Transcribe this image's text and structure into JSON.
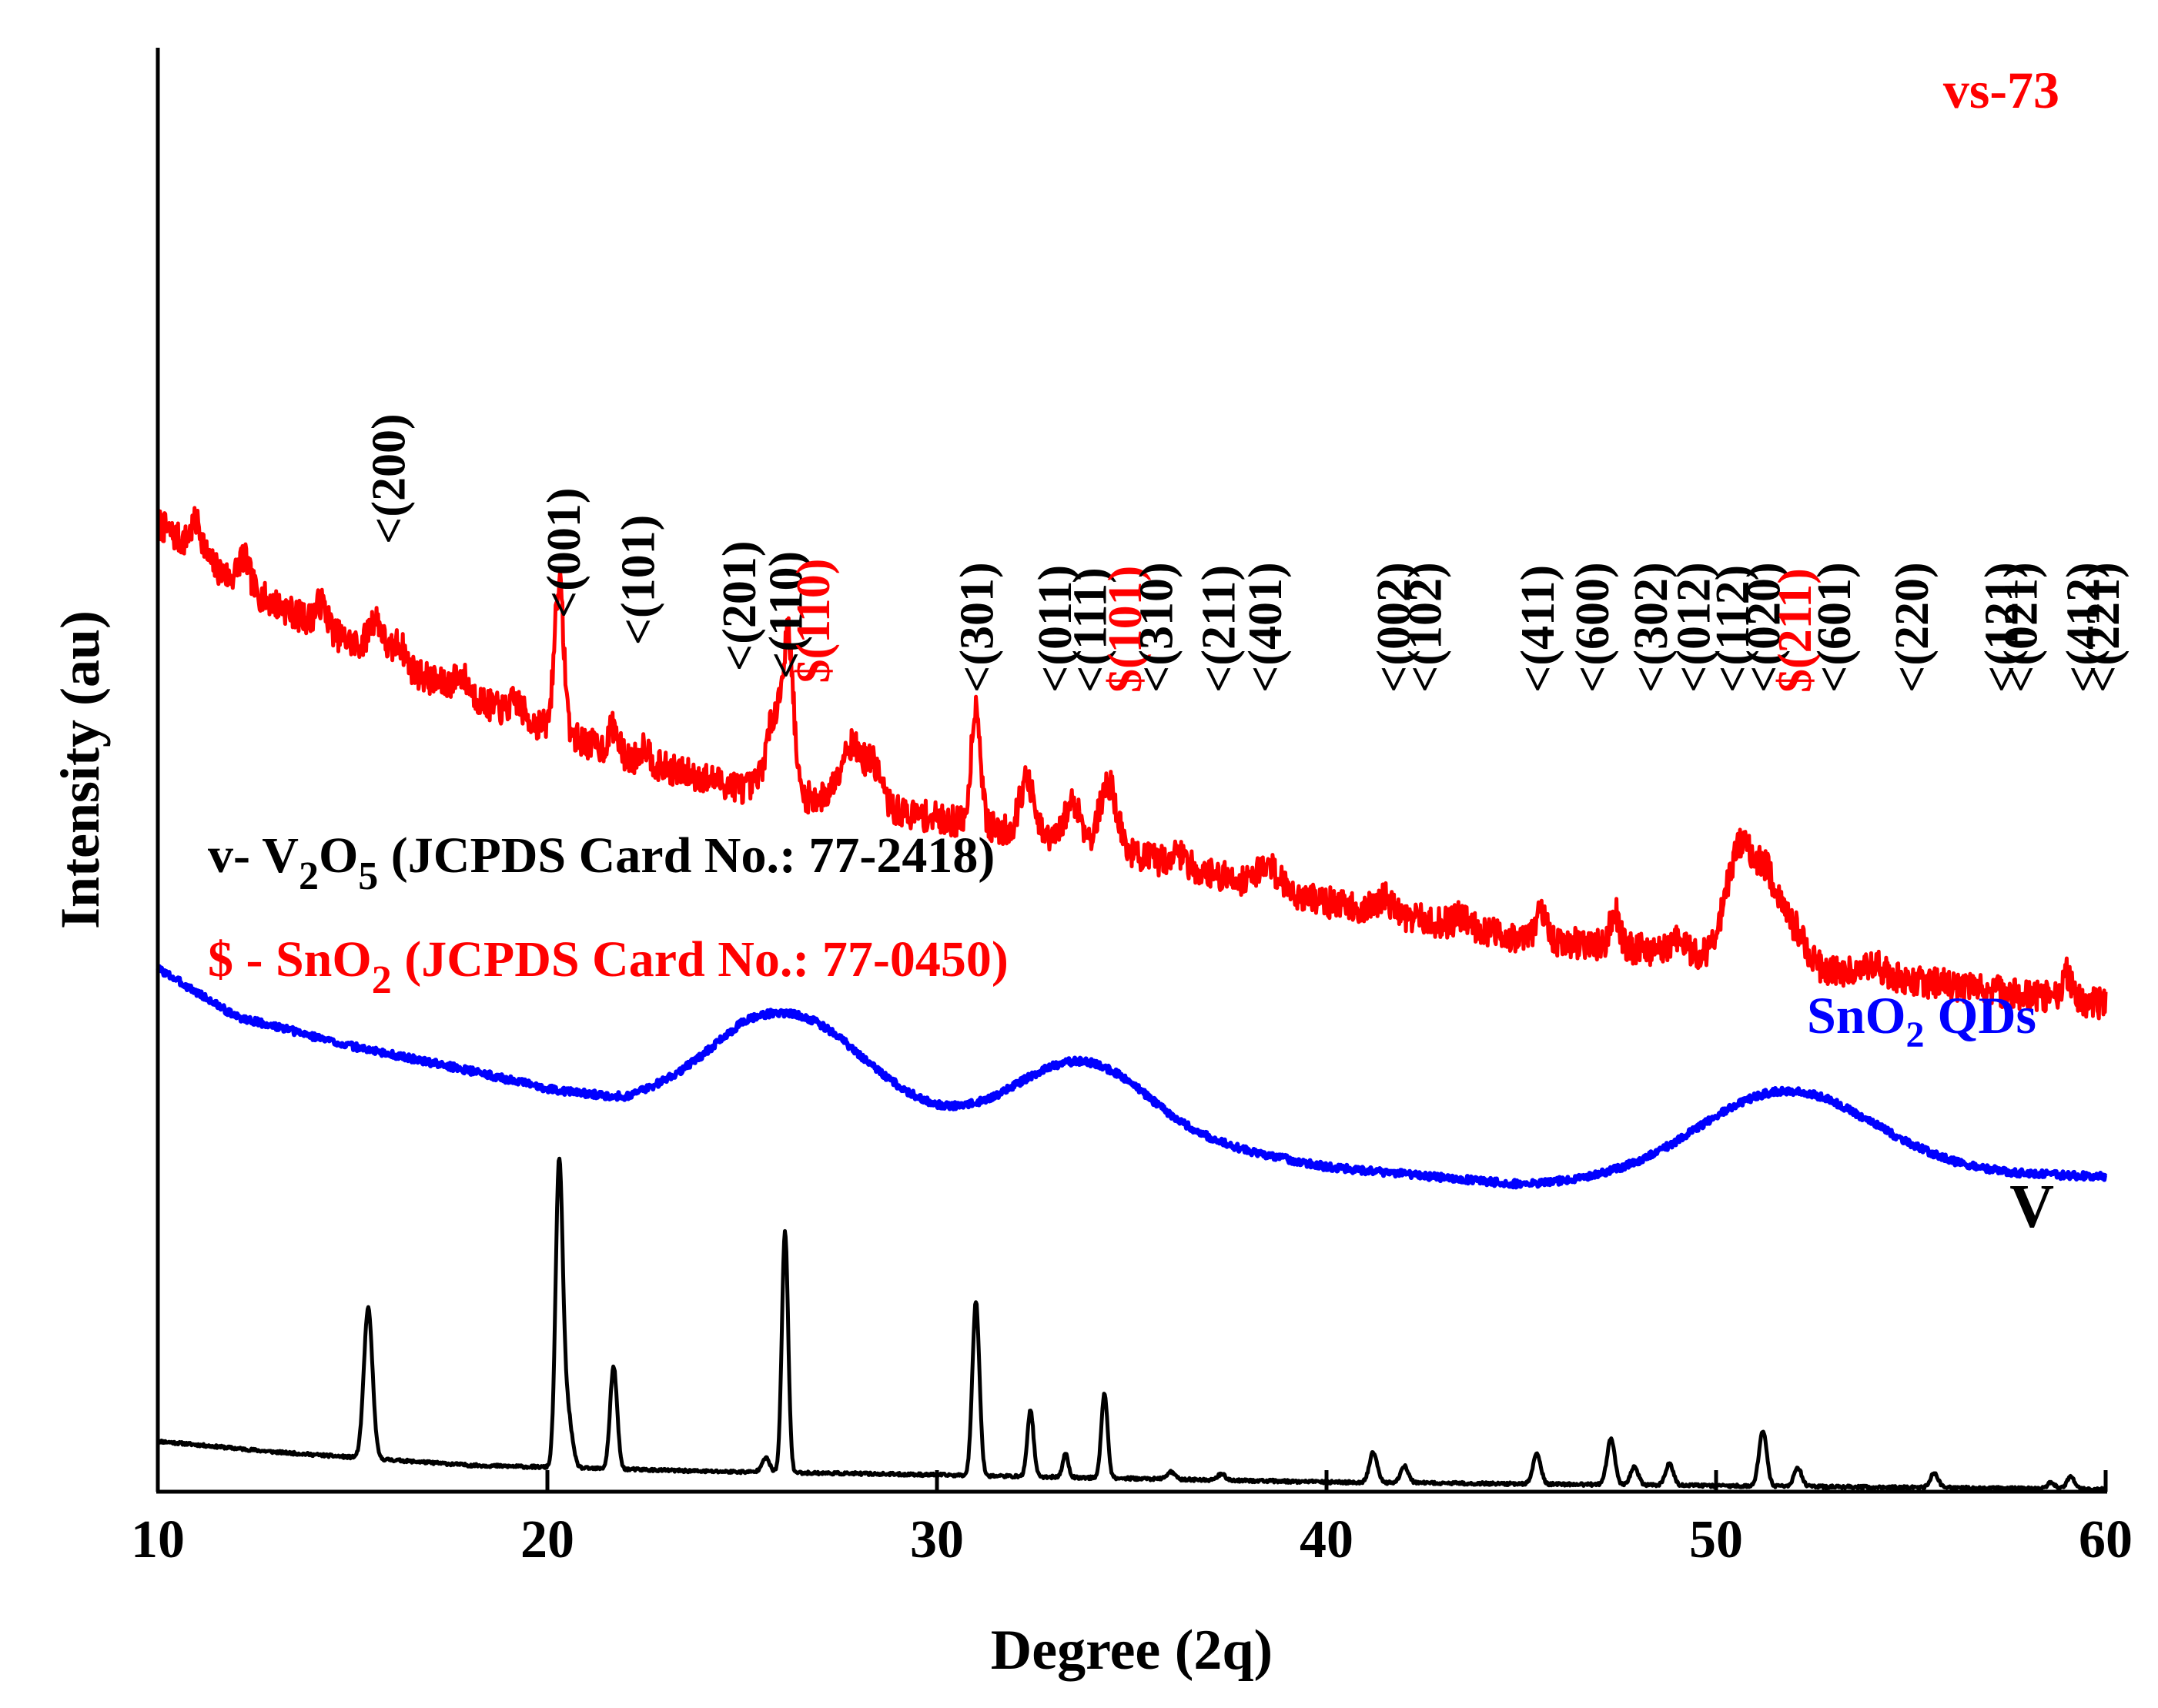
{
  "chart_data": {
    "type": "line",
    "title": "",
    "xlabel": "Degree (2q)",
    "ylabel": "Intensity (au)",
    "xlim": [
      10,
      60
    ],
    "xticks": [
      10,
      20,
      30,
      40,
      50,
      60
    ],
    "xtick_labels": [
      "10",
      "20",
      "30",
      "40",
      "50",
      "60"
    ],
    "ylim": [
      0,
      12
    ],
    "yticks": [],
    "grid": false,
    "colors": {
      "vs73": "#ff0000",
      "sno2": "#0000ff",
      "v2o5": "#000000",
      "axis": "#000000"
    },
    "series": [
      {
        "name": "vs-73",
        "label": "vs-73",
        "color": "#ff0000",
        "baseline": [
          [
            10,
            8.05
          ],
          [
            12,
            7.55
          ],
          [
            15,
            7.05
          ],
          [
            18,
            6.6
          ],
          [
            20,
            6.35
          ],
          [
            22,
            6.1
          ],
          [
            25,
            5.85
          ],
          [
            30,
            5.6
          ],
          [
            35,
            5.3
          ],
          [
            40,
            4.9
          ],
          [
            45,
            4.6
          ],
          [
            50,
            4.45
          ],
          [
            55,
            4.25
          ],
          [
            60,
            4.05
          ]
        ],
        "peaks": [
          [
            11,
            0.25,
            0.15
          ],
          [
            12.2,
            0.25,
            0.15
          ],
          [
            14.2,
            0.2,
            0.15
          ],
          [
            15.6,
            0.3,
            0.18
          ],
          [
            16.2,
            0.18,
            0.15
          ],
          [
            17.8,
            0.15,
            0.2
          ],
          [
            19.2,
            0.12,
            0.15
          ],
          [
            20.3,
            1.25,
            0.12
          ],
          [
            21.7,
            0.22,
            0.12
          ],
          [
            22.5,
            0.15,
            0.12
          ],
          [
            25.9,
            0.7,
            0.25
          ],
          [
            26.2,
            1.0,
            0.12
          ],
          [
            27.8,
            0.5,
            0.3
          ],
          [
            28.4,
            0.3,
            0.2
          ],
          [
            31.0,
            1.0,
            0.12
          ],
          [
            32.3,
            0.45,
            0.18
          ],
          [
            33.5,
            0.35,
            0.2
          ],
          [
            34.4,
            0.55,
            0.22
          ],
          [
            36.2,
            0.1,
            0.2
          ],
          [
            38.5,
            0.18,
            0.3
          ],
          [
            41.5,
            0.12,
            0.2
          ],
          [
            43.5,
            0.1,
            0.2
          ],
          [
            45.5,
            0.2,
            0.15
          ],
          [
            47.4,
            0.3,
            0.12
          ],
          [
            49,
            0.1,
            0.2
          ],
          [
            50.6,
            0.9,
            0.35
          ],
          [
            51.3,
            0.65,
            0.3
          ],
          [
            52,
            0.3,
            0.3
          ],
          [
            54,
            0.1,
            0.3
          ],
          [
            59,
            0.22,
            0.12
          ]
        ],
        "noise": 0.13,
        "seed": 7
      },
      {
        "name": "SnO2 QDs",
        "label": "SnO2 QDs",
        "color": "#0000ff",
        "baseline": [
          [
            10,
            4.35
          ],
          [
            12,
            3.95
          ],
          [
            15,
            3.7
          ],
          [
            18,
            3.5
          ],
          [
            20,
            3.35
          ],
          [
            22,
            3.25
          ],
          [
            25,
            3.4
          ],
          [
            30,
            3.1
          ],
          [
            35,
            3.0
          ],
          [
            40,
            2.7
          ],
          [
            45,
            2.55
          ],
          [
            50,
            2.62
          ],
          [
            55,
            2.65
          ],
          [
            60,
            2.62
          ]
        ],
        "peaks": [
          [
            26.3,
            0.65,
            1.8
          ],
          [
            33.7,
            0.55,
            1.6
          ],
          [
            51.8,
            0.7,
            2.2
          ]
        ],
        "noise": 0.03,
        "seed": 3
      },
      {
        "name": "V2O5",
        "label": "V",
        "color": "#000000",
        "baseline": [
          [
            10,
            0.42
          ],
          [
            13,
            0.33
          ],
          [
            18,
            0.22
          ],
          [
            24,
            0.17
          ],
          [
            30,
            0.14
          ],
          [
            40,
            0.08
          ],
          [
            50,
            0.05
          ],
          [
            60,
            0.02
          ]
        ],
        "peaks": [
          [
            15.4,
            1.25,
            0.11
          ],
          [
            20.3,
            2.45,
            0.09
          ],
          [
            20.5,
            0.5,
            0.12
          ],
          [
            21.7,
            0.85,
            0.09
          ],
          [
            25.6,
            0.12,
            0.1
          ],
          [
            26.1,
            2.0,
            0.08
          ],
          [
            31.0,
            1.45,
            0.09
          ],
          [
            32.4,
            0.55,
            0.08
          ],
          [
            33.3,
            0.2,
            0.07
          ],
          [
            34.3,
            0.7,
            0.08
          ],
          [
            36.0,
            0.06,
            0.1
          ],
          [
            37.3,
            0.05,
            0.1
          ],
          [
            41.2,
            0.25,
            0.1
          ],
          [
            42.0,
            0.14,
            0.1
          ],
          [
            45.4,
            0.25,
            0.1
          ],
          [
            47.3,
            0.38,
            0.1
          ],
          [
            47.9,
            0.15,
            0.1
          ],
          [
            48.8,
            0.18,
            0.1
          ],
          [
            51.2,
            0.46,
            0.1
          ],
          [
            52.1,
            0.15,
            0.1
          ],
          [
            55.6,
            0.12,
            0.1
          ],
          [
            58.6,
            0.05,
            0.1
          ],
          [
            59.1,
            0.1,
            0.1
          ]
        ],
        "noise": 0.012,
        "seed": 11
      }
    ],
    "peak_annotations": [
      {
        "x": 15.9,
        "label": "<(200)",
        "color": "#000000"
      },
      {
        "x": 20.4,
        "label": "<(001)",
        "color": "#000000"
      },
      {
        "x": 22.3,
        "label": "<(101)",
        "color": "#000000"
      },
      {
        "x": 24.9,
        "label": "<(201)",
        "color": "#000000"
      },
      {
        "x": 26.1,
        "label": "<(110)",
        "color": "#000000"
      },
      {
        "x": 26.8,
        "label": "$(110)",
        "color": "#ff0000"
      },
      {
        "x": 31.0,
        "label": "<(301)",
        "color": "#000000"
      },
      {
        "x": 33.0,
        "label": "<(011)",
        "color": "#000000"
      },
      {
        "x": 33.9,
        "label": "<(111)",
        "color": "#000000"
      },
      {
        "x": 34.8,
        "label": "$(101)",
        "color": "#ff0000"
      },
      {
        "x": 35.6,
        "label": "<(310)",
        "color": "#000000"
      },
      {
        "x": 37.2,
        "label": "<(211)",
        "color": "#000000"
      },
      {
        "x": 38.4,
        "label": "<(401)",
        "color": "#000000"
      },
      {
        "x": 41.7,
        "label": "<(002)",
        "color": "#000000"
      },
      {
        "x": 42.5,
        "label": "<(102)",
        "color": "#000000"
      },
      {
        "x": 45.4,
        "label": "<(411)",
        "color": "#000000"
      },
      {
        "x": 46.8,
        "label": "<(600)",
        "color": "#000000"
      },
      {
        "x": 48.3,
        "label": "<(302)",
        "color": "#000000"
      },
      {
        "x": 49.4,
        "label": "<(012)",
        "color": "#000000"
      },
      {
        "x": 50.4,
        "label": "<(112)",
        "color": "#000000"
      },
      {
        "x": 51.2,
        "label": "<(020)",
        "color": "#000000"
      },
      {
        "x": 52.0,
        "label": "$(211)",
        "color": "#ff0000"
      },
      {
        "x": 53.0,
        "label": "<(601)",
        "color": "#000000"
      },
      {
        "x": 55.0,
        "label": "<(220)",
        "color": "#000000"
      },
      {
        "x": 57.3,
        "label": "<(121)",
        "color": "#000000"
      },
      {
        "x": 57.8,
        "label": "<(021)",
        "color": "#000000"
      },
      {
        "x": 59.4,
        "label": "<(412)",
        "color": "#000000"
      },
      {
        "x": 59.9,
        "label": "<(221)",
        "color": "#000000"
      }
    ],
    "legend_entries": [
      {
        "prefix": "v- V",
        "sub1": "2",
        "mid": "O",
        "sub2": "5",
        "suffix": " (JCPDS Card No.: 77-2418)",
        "color": "#000000"
      },
      {
        "prefix": "$ - SnO",
        "sub1": "2",
        "mid": "",
        "sub2": "",
        "suffix": " (JCPDS Card No.: 77-0450)",
        "color": "#ff0000"
      }
    ],
    "series_labels": [
      {
        "text": "vs-73",
        "color": "#ff0000"
      },
      {
        "text": "SnO",
        "sub": "2",
        "suffix": " QDs",
        "color": "#0000ff"
      },
      {
        "text": "V",
        "color": "#000000"
      }
    ]
  }
}
